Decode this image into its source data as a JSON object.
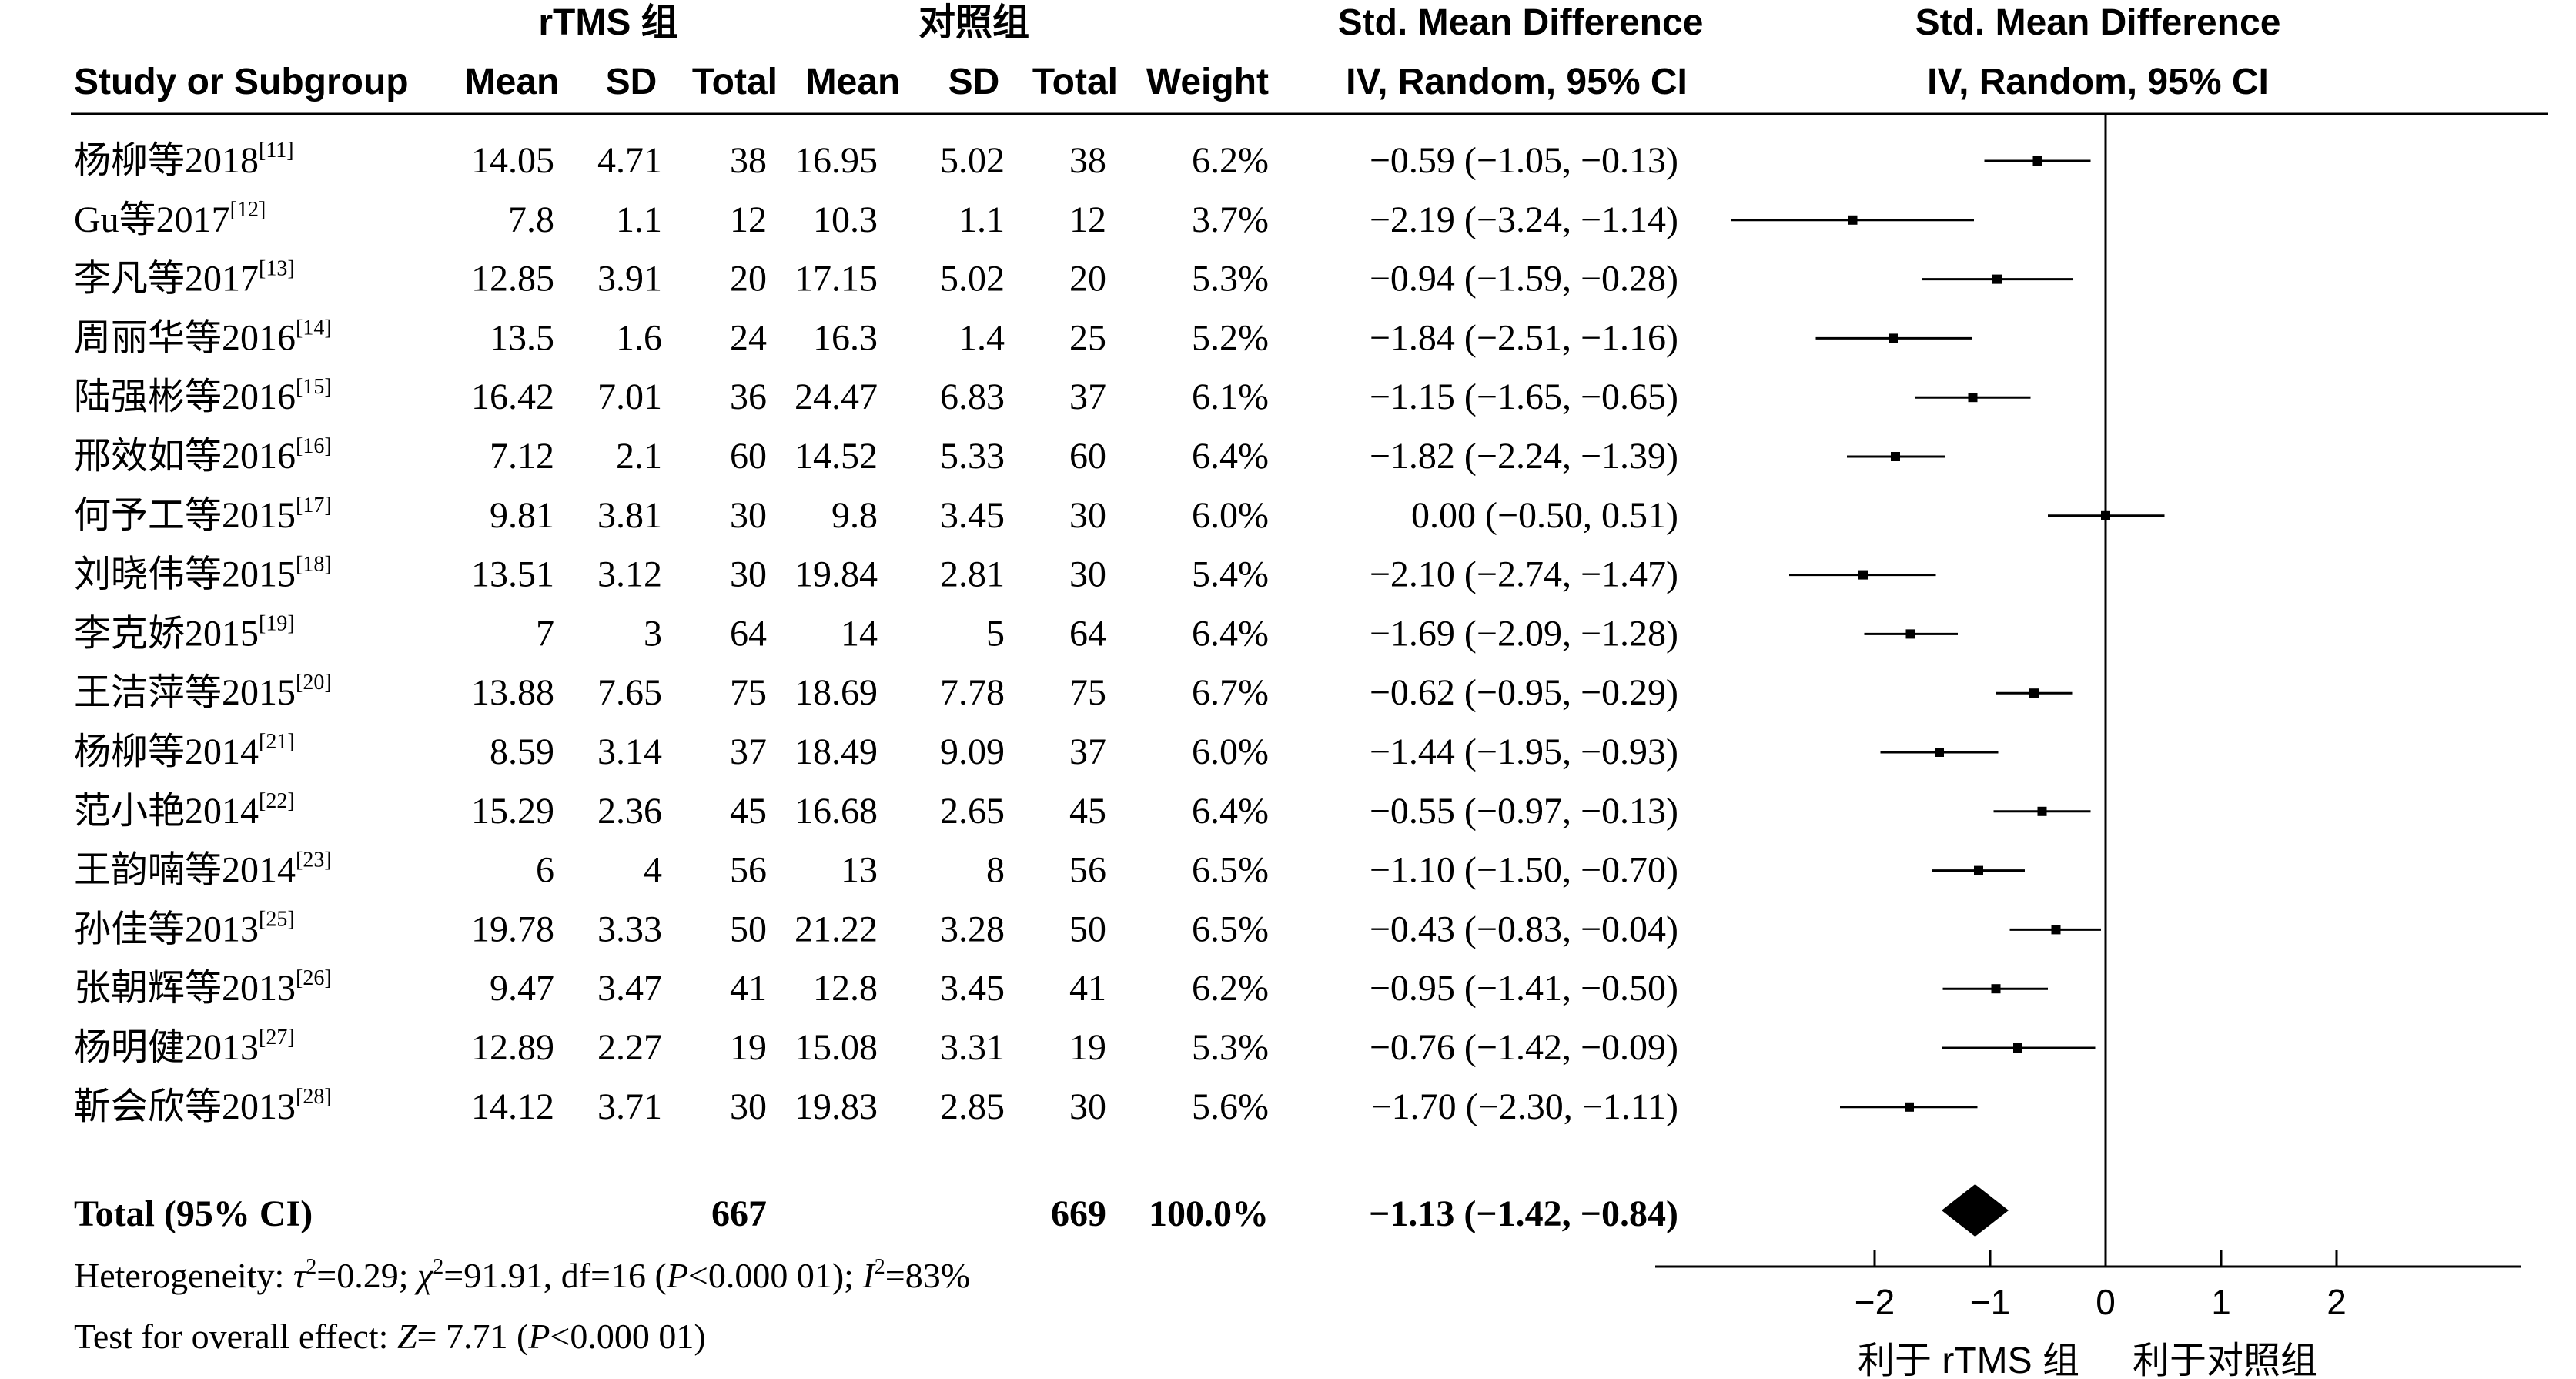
{
  "headers": {
    "group_exp": "rTMS 组",
    "group_ctrl": "对照组",
    "smd_title": "Std. Mean Difference",
    "smd_method": "IV, Random, 95% CI",
    "plot_title": "Std. Mean Difference",
    "plot_method": "IV, Random, 95% CI",
    "study": "Study or Subgroup",
    "mean": "Mean",
    "sd": "SD",
    "total": "Total",
    "weight": "Weight"
  },
  "studies": [
    {
      "name": "杨柳等2018",
      "ref": "[11]",
      "m1": "14.05",
      "sd1": "4.71",
      "n1": "38",
      "m2": "16.95",
      "sd2": "5.02",
      "n2": "38",
      "weight": "6.2%",
      "ci_text": "−0.59 (−1.05, −0.13)"
    },
    {
      "name": "Gu等2017",
      "ref": "[12]",
      "m1": "7.8",
      "sd1": "1.1",
      "n1": "12",
      "m2": "10.3",
      "sd2": "1.1",
      "n2": "12",
      "weight": "3.7%",
      "ci_text": "−2.19 (−3.24, −1.14)"
    },
    {
      "name": "李凡等2017",
      "ref": "[13]",
      "m1": "12.85",
      "sd1": "3.91",
      "n1": "20",
      "m2": "17.15",
      "sd2": "5.02",
      "n2": "20",
      "weight": "5.3%",
      "ci_text": "−0.94 (−1.59, −0.28)"
    },
    {
      "name": "周丽华等2016",
      "ref": "[14]",
      "m1": "13.5",
      "sd1": "1.6",
      "n1": "24",
      "m2": "16.3",
      "sd2": "1.4",
      "n2": "25",
      "weight": "5.2%",
      "ci_text": "−1.84 (−2.51, −1.16)"
    },
    {
      "name": "陆强彬等2016",
      "ref": "[15]",
      "m1": "16.42",
      "sd1": "7.01",
      "n1": "36",
      "m2": "24.47",
      "sd2": "6.83",
      "n2": "37",
      "weight": "6.1%",
      "ci_text": "−1.15 (−1.65, −0.65)"
    },
    {
      "name": "邢效如等2016",
      "ref": "[16]",
      "m1": "7.12",
      "sd1": "2.1",
      "n1": "60",
      "m2": "14.52",
      "sd2": "5.33",
      "n2": "60",
      "weight": "6.4%",
      "ci_text": "−1.82 (−2.24, −1.39)"
    },
    {
      "name": "何予工等2015",
      "ref": "[17]",
      "m1": "9.81",
      "sd1": "3.81",
      "n1": "30",
      "m2": "9.8",
      "sd2": "3.45",
      "n2": "30",
      "weight": "6.0%",
      "ci_text": "0.00 (−0.50, 0.51)"
    },
    {
      "name": "刘晓伟等2015",
      "ref": "[18]",
      "m1": "13.51",
      "sd1": "3.12",
      "n1": "30",
      "m2": "19.84",
      "sd2": "2.81",
      "n2": "30",
      "weight": "5.4%",
      "ci_text": "−2.10 (−2.74, −1.47)"
    },
    {
      "name": "李克娇2015",
      "ref": "[19]",
      "m1": "7",
      "sd1": "3",
      "n1": "64",
      "m2": "14",
      "sd2": "5",
      "n2": "64",
      "weight": "6.4%",
      "ci_text": "−1.69 (−2.09, −1.28)"
    },
    {
      "name": "王洁萍等2015",
      "ref": "[20]",
      "m1": "13.88",
      "sd1": "7.65",
      "n1": "75",
      "m2": "18.69",
      "sd2": "7.78",
      "n2": "75",
      "weight": "6.7%",
      "ci_text": "−0.62 (−0.95, −0.29)"
    },
    {
      "name": "杨柳等2014",
      "ref": "[21]",
      "m1": "8.59",
      "sd1": "3.14",
      "n1": "37",
      "m2": "18.49",
      "sd2": "9.09",
      "n2": "37",
      "weight": "6.0%",
      "ci_text": "−1.44 (−1.95, −0.93)"
    },
    {
      "name": "范小艳2014",
      "ref": "[22]",
      "m1": "15.29",
      "sd1": "2.36",
      "n1": "45",
      "m2": "16.68",
      "sd2": "2.65",
      "n2": "45",
      "weight": "6.4%",
      "ci_text": "−0.55 (−0.97, −0.13)"
    },
    {
      "name": "王韵喃等2014",
      "ref": "[23]",
      "m1": "6",
      "sd1": "4",
      "n1": "56",
      "m2": "13",
      "sd2": "8",
      "n2": "56",
      "weight": "6.5%",
      "ci_text": "−1.10 (−1.50, −0.70)"
    },
    {
      "name": "孙佳等2013",
      "ref": "[25]",
      "m1": "19.78",
      "sd1": "3.33",
      "n1": "50",
      "m2": "21.22",
      "sd2": "3.28",
      "n2": "50",
      "weight": "6.5%",
      "ci_text": "−0.43 (−0.83, −0.04)"
    },
    {
      "name": "张朝辉等2013",
      "ref": "[26]",
      "m1": "9.47",
      "sd1": "3.47",
      "n1": "41",
      "m2": "12.8",
      "sd2": "3.45",
      "n2": "41",
      "weight": "6.2%",
      "ci_text": "−0.95 (−1.41, −0.50)"
    },
    {
      "name": "杨明健2013",
      "ref": "[27]",
      "m1": "12.89",
      "sd1": "2.27",
      "n1": "19",
      "m2": "15.08",
      "sd2": "3.31",
      "n2": "19",
      "weight": "5.3%",
      "ci_text": "−0.76 (−1.42, −0.09)"
    },
    {
      "name": "靳会欣等2013",
      "ref": "[28]",
      "m1": "14.12",
      "sd1": "3.71",
      "n1": "30",
      "m2": "19.83",
      "sd2": "2.85",
      "n2": "30",
      "weight": "5.6%",
      "ci_text": "−1.70 (−2.30, −1.11)"
    }
  ],
  "total": {
    "label": "Total (95% CI)",
    "n1": "667",
    "n2": "669",
    "weight": "100.0%",
    "ci_text": "−1.13 (−1.42, −0.84)"
  },
  "heterogeneity": {
    "prefix": "Heterogeneity: ",
    "tau_sym": "τ",
    "tau_sup": "2",
    "tau_val": "=0.29; ",
    "chi_sym": "χ",
    "chi_sup": "2",
    "chi_val": "=91.91, df=16 (",
    "p_sym": "P",
    "p_val": "<0.000 01); ",
    "i_sym": "I",
    "i_sup": "2",
    "i_val": "=83%"
  },
  "overall": {
    "prefix": "Test for overall effect: ",
    "z_sym": "Z",
    "z_val": "= 7.71 (",
    "p_sym": "P",
    "p_val": "<0.000 01)"
  },
  "axis": {
    "favours_left": "利于 rTMS 组",
    "favours_right": "利于对照组"
  },
  "chart_data": {
    "type": "forest",
    "xlim": [
      -3.9,
      3.6
    ],
    "ticks": [
      -2,
      -1,
      0,
      1,
      2
    ],
    "tick_labels": [
      "−2",
      "−1",
      "0",
      "1",
      "2"
    ],
    "grid": false,
    "studies": [
      {
        "smd": -0.59,
        "lo": -1.05,
        "hi": -0.13
      },
      {
        "smd": -2.19,
        "lo": -3.24,
        "hi": -1.14
      },
      {
        "smd": -0.94,
        "lo": -1.59,
        "hi": -0.28
      },
      {
        "smd": -1.84,
        "lo": -2.51,
        "hi": -1.16
      },
      {
        "smd": -1.15,
        "lo": -1.65,
        "hi": -0.65
      },
      {
        "smd": -1.82,
        "lo": -2.24,
        "hi": -1.39
      },
      {
        "smd": 0.0,
        "lo": -0.5,
        "hi": 0.51
      },
      {
        "smd": -2.1,
        "lo": -2.74,
        "hi": -1.47
      },
      {
        "smd": -1.69,
        "lo": -2.09,
        "hi": -1.28
      },
      {
        "smd": -0.62,
        "lo": -0.95,
        "hi": -0.29
      },
      {
        "smd": -1.44,
        "lo": -1.95,
        "hi": -0.93
      },
      {
        "smd": -0.55,
        "lo": -0.97,
        "hi": -0.13
      },
      {
        "smd": -1.1,
        "lo": -1.5,
        "hi": -0.7
      },
      {
        "smd": -0.43,
        "lo": -0.83,
        "hi": -0.04
      },
      {
        "smd": -0.95,
        "lo": -1.41,
        "hi": -0.5
      },
      {
        "smd": -0.76,
        "lo": -1.42,
        "hi": -0.09
      },
      {
        "smd": -1.7,
        "lo": -2.3,
        "hi": -1.11
      }
    ],
    "pooled": {
      "smd": -1.13,
      "lo": -1.42,
      "hi": -0.84
    }
  }
}
